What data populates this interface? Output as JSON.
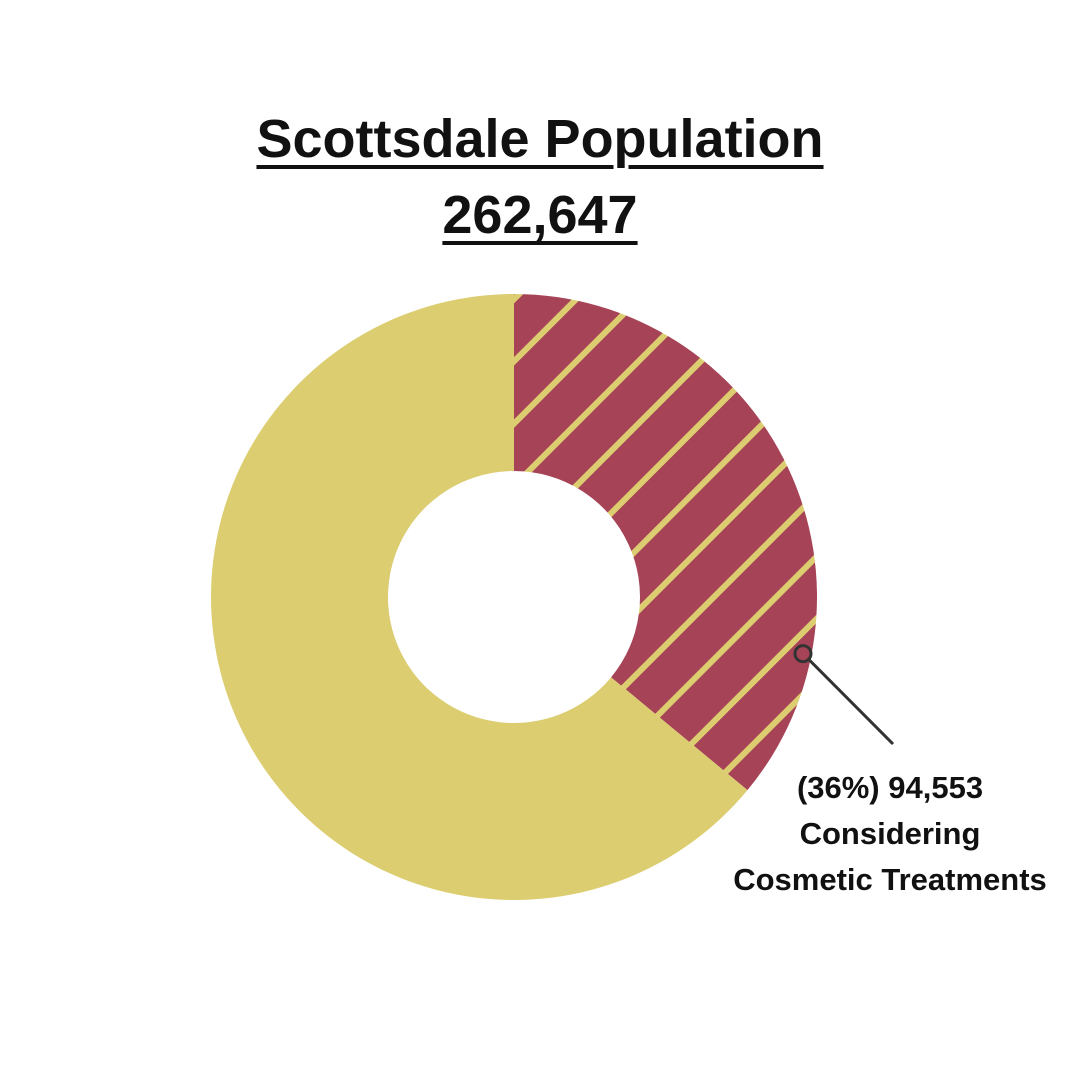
{
  "title": {
    "line1": "Scottsdale Population",
    "line2": "262,647"
  },
  "chart_data": {
    "type": "pie",
    "total": 262647,
    "slices": [
      {
        "value": 94553,
        "percent": 36,
        "color": "#A64356",
        "pattern": "hatched"
      },
      {
        "value": 168094,
        "percent": 64,
        "color": "#DCCD71"
      }
    ],
    "annotation": {
      "line1": "(36%) 94,553",
      "line2": "Considering",
      "line3": "Cosmetic Treatments"
    }
  },
  "colors": {
    "highlight": "#A64356",
    "base": "#DCCD71",
    "hatch": "#DCCD71",
    "text": "#111111"
  }
}
